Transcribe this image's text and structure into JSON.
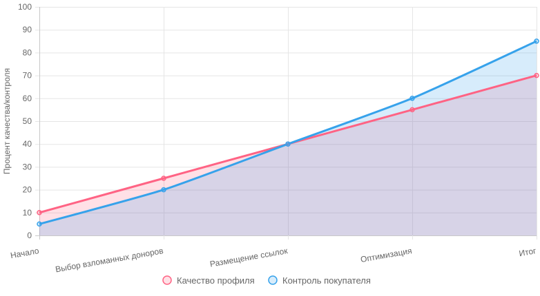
{
  "chart_data": {
    "type": "line",
    "categories": [
      "Начало",
      "Выбор взломанных доноров",
      "Размещение ссылок",
      "Оптимизация",
      "Итог"
    ],
    "series": [
      {
        "name": "Качество профиля",
        "values": [
          10,
          25,
          40,
          55,
          70
        ],
        "color": "#ff6384",
        "fill": "rgba(255,99,132,0.2)"
      },
      {
        "name": "Контроль покупателя",
        "values": [
          5,
          20,
          40,
          60,
          85
        ],
        "color": "#36a2eb",
        "fill": "rgba(54,162,235,0.2)"
      }
    ],
    "title": "",
    "xlabel": "",
    "ylabel": "Процент качества/контроля",
    "ylim": [
      0,
      100
    ],
    "yticks": [
      0,
      10,
      20,
      30,
      40,
      50,
      60,
      70,
      80,
      90,
      100
    ],
    "grid": true,
    "legend_position": "bottom"
  }
}
